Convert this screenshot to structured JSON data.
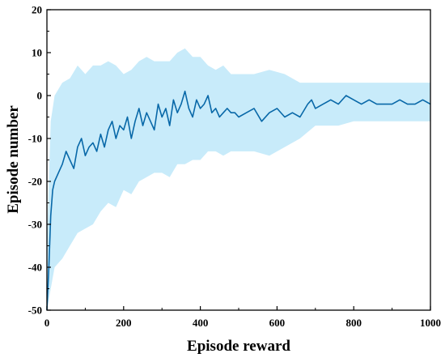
{
  "colors": {
    "line": "#0868a8",
    "band": "#c8ebfa",
    "axis": "#000000",
    "background": "#ffffff"
  },
  "chart_data": {
    "type": "line",
    "title": "",
    "xlabel": "Episode reward",
    "ylabel": "Episode number",
    "xlim": [
      0,
      1000
    ],
    "ylim": [
      -50,
      20
    ],
    "xticks": [
      0,
      200,
      400,
      600,
      800,
      1000
    ],
    "yticks": [
      -50,
      -40,
      -30,
      -20,
      -10,
      0,
      10,
      20
    ],
    "grid": false,
    "legend": "none",
    "series": [
      {
        "kind": "mean_line",
        "x": [
          0,
          5,
          10,
          15,
          20,
          30,
          40,
          50,
          60,
          70,
          80,
          90,
          100,
          110,
          120,
          130,
          140,
          150,
          160,
          170,
          180,
          190,
          200,
          210,
          220,
          230,
          240,
          250,
          260,
          270,
          280,
          290,
          300,
          310,
          320,
          330,
          340,
          350,
          360,
          370,
          380,
          390,
          400,
          410,
          420,
          430,
          440,
          450,
          460,
          470,
          480,
          490,
          500,
          520,
          540,
          560,
          580,
          600,
          620,
          640,
          660,
          680,
          690,
          700,
          720,
          740,
          760,
          780,
          800,
          820,
          840,
          860,
          880,
          900,
          920,
          940,
          960,
          980,
          1000
        ],
        "y": [
          -50,
          -40,
          -28,
          -22,
          -20,
          -18,
          -16,
          -13,
          -15,
          -17,
          -12,
          -10,
          -14,
          -12,
          -11,
          -13,
          -9,
          -12,
          -8,
          -6,
          -10,
          -7,
          -8,
          -5,
          -10,
          -6,
          -3,
          -7,
          -4,
          -6,
          -8,
          -2,
          -5,
          -3,
          -7,
          -1,
          -4,
          -2,
          1,
          -3,
          -5,
          -1,
          -3,
          -2,
          0,
          -4,
          -3,
          -5,
          -4,
          -3,
          -4,
          -4,
          -5,
          -4,
          -3,
          -6,
          -4,
          -3,
          -5,
          -4,
          -5,
          -2,
          -1,
          -3,
          -2,
          -1,
          -2,
          0,
          -1,
          -2,
          -1,
          -2,
          -2,
          -2,
          -1,
          -2,
          -2,
          -1,
          -2
        ]
      },
      {
        "kind": "upper_band",
        "x": [
          0,
          10,
          20,
          40,
          60,
          80,
          100,
          120,
          140,
          160,
          180,
          200,
          220,
          240,
          260,
          280,
          300,
          320,
          340,
          360,
          380,
          400,
          420,
          440,
          460,
          480,
          500,
          540,
          580,
          620,
          660,
          700,
          760,
          800,
          860,
          920,
          1000
        ],
        "y": [
          -35,
          -6,
          0,
          3,
          4,
          7,
          5,
          7,
          7,
          8,
          7,
          5,
          6,
          8,
          9,
          8,
          8,
          8,
          10,
          11,
          9,
          9,
          7,
          6,
          7,
          5,
          5,
          5,
          6,
          5,
          3,
          3,
          3,
          3,
          3,
          3,
          3
        ]
      },
      {
        "kind": "lower_band",
        "x": [
          0,
          10,
          20,
          40,
          60,
          80,
          100,
          120,
          140,
          160,
          180,
          200,
          220,
          240,
          260,
          280,
          300,
          320,
          340,
          360,
          380,
          400,
          420,
          440,
          460,
          480,
          500,
          540,
          580,
          620,
          660,
          700,
          760,
          800,
          860,
          920,
          1000
        ],
        "y": [
          -50,
          -45,
          -40,
          -38,
          -35,
          -32,
          -31,
          -30,
          -27,
          -25,
          -26,
          -22,
          -23,
          -20,
          -19,
          -18,
          -18,
          -19,
          -16,
          -16,
          -15,
          -15,
          -13,
          -13,
          -14,
          -13,
          -13,
          -13,
          -14,
          -12,
          -10,
          -7,
          -7,
          -6,
          -6,
          -6,
          -6
        ]
      }
    ]
  }
}
